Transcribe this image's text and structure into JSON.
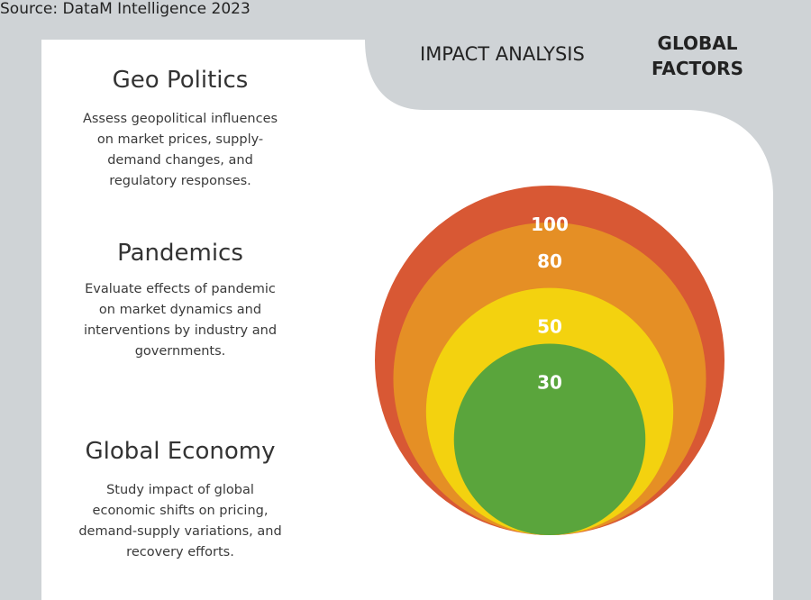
{
  "header": {
    "impact_label": "IMPACT ANALYSIS",
    "global_line1": "GLOBAL",
    "global_line2": "FACTORS"
  },
  "source": "Source: DataM Intelligence 2023",
  "factors": [
    {
      "title": "Geo Politics",
      "lines": [
        "Assess geopolitical influences",
        "on market prices, supply-",
        "demand changes, and",
        "regulatory responses."
      ]
    },
    {
      "title": "Pandemics",
      "lines": [
        "Evaluate effects of pandemic",
        "on market dynamics and",
        "interventions by industry and",
        "governments."
      ]
    },
    {
      "title": "Global Economy",
      "lines": [
        "Study impact of global",
        "economic shifts on pricing,",
        "demand-supply variations, and",
        "recovery efforts."
      ]
    }
  ],
  "circles": [
    {
      "value": 100,
      "label": "100",
      "color": "#d85834"
    },
    {
      "value": 80,
      "label": "80",
      "color": "#e58f25"
    },
    {
      "value": 50,
      "label": "50",
      "color": "#f3d20f"
    },
    {
      "value": 30,
      "label": "30",
      "color": "#5aa53c"
    }
  ],
  "colors": {
    "background": "#cfd3d6",
    "panel": "#ffffff",
    "title_text": "#333333",
    "desc_text": "#3a3a3a"
  }
}
